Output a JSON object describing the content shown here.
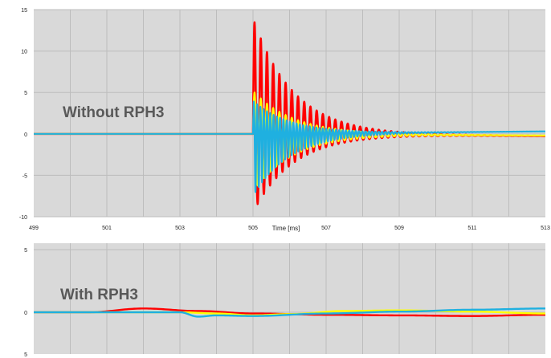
{
  "chart_data": [
    {
      "type": "line",
      "title": "",
      "annotation": "Without RPH3",
      "xlabel": "Time [ms]",
      "ylabel": "",
      "xlim": [
        499,
        513
      ],
      "ylim": [
        -10,
        15
      ],
      "x_ticks": [
        "499",
        "501",
        "503",
        "505",
        "507",
        "509",
        "511",
        "513"
      ],
      "y_ticks": [
        "15",
        "10",
        "5",
        "0",
        "-5",
        "-10"
      ],
      "grid": true,
      "legend": "none",
      "series": [
        {
          "color": "#ff0000",
          "signal": {
            "onset": 505.0,
            "first_peak": 14.0,
            "first_trough": -9.5,
            "cycle_ms": 0.17,
            "decay_ms": 1.1,
            "drift_at_513": -0.25
          }
        },
        {
          "color": "#ffff00",
          "signal": {
            "onset": 505.0,
            "first_peak": 5.2,
            "first_trough": -7.0,
            "cycle_ms": 0.17,
            "decay_ms": 1.1,
            "drift_at_513": -0.2
          }
        },
        {
          "color": "#1fb0e0",
          "signal": {
            "onset": 505.0,
            "first_peak": 4.0,
            "first_trough": -7.5,
            "cycle_ms": 0.09,
            "decay_ms": 1.0,
            "drift_at_513": 0.3
          }
        }
      ]
    },
    {
      "type": "line",
      "title": "",
      "annotation": "With RPH3",
      "xlim": [
        499,
        513
      ],
      "ylim": [
        -5,
        5
      ],
      "y_ticks": [
        "5",
        "0",
        "5"
      ],
      "grid": true,
      "legend": "none",
      "series": [
        {
          "color": "#ff0000",
          "points": [
            [
              499,
              0
            ],
            [
              500.5,
              0
            ],
            [
              502,
              0.3
            ],
            [
              503.5,
              0.1
            ],
            [
              505,
              -0.1
            ],
            [
              507,
              -0.2
            ],
            [
              509,
              -0.25
            ],
            [
              511,
              -0.3
            ],
            [
              513,
              -0.2
            ]
          ]
        },
        {
          "color": "#ffff00",
          "points": [
            [
              499,
              0
            ],
            [
              503,
              0
            ],
            [
              504,
              -0.1
            ],
            [
              505,
              -0.25
            ],
            [
              506,
              -0.15
            ],
            [
              507.5,
              0.1
            ],
            [
              509,
              0.15
            ],
            [
              511,
              0.05
            ],
            [
              513,
              -0.1
            ]
          ]
        },
        {
          "color": "#1fb0e0",
          "points": [
            [
              499,
              0
            ],
            [
              503,
              0
            ],
            [
              503.5,
              -0.35
            ],
            [
              504,
              -0.25
            ],
            [
              505,
              -0.3
            ],
            [
              507,
              -0.1
            ],
            [
              509,
              0.05
            ],
            [
              511,
              0.2
            ],
            [
              513,
              0.3
            ]
          ]
        }
      ]
    }
  ]
}
